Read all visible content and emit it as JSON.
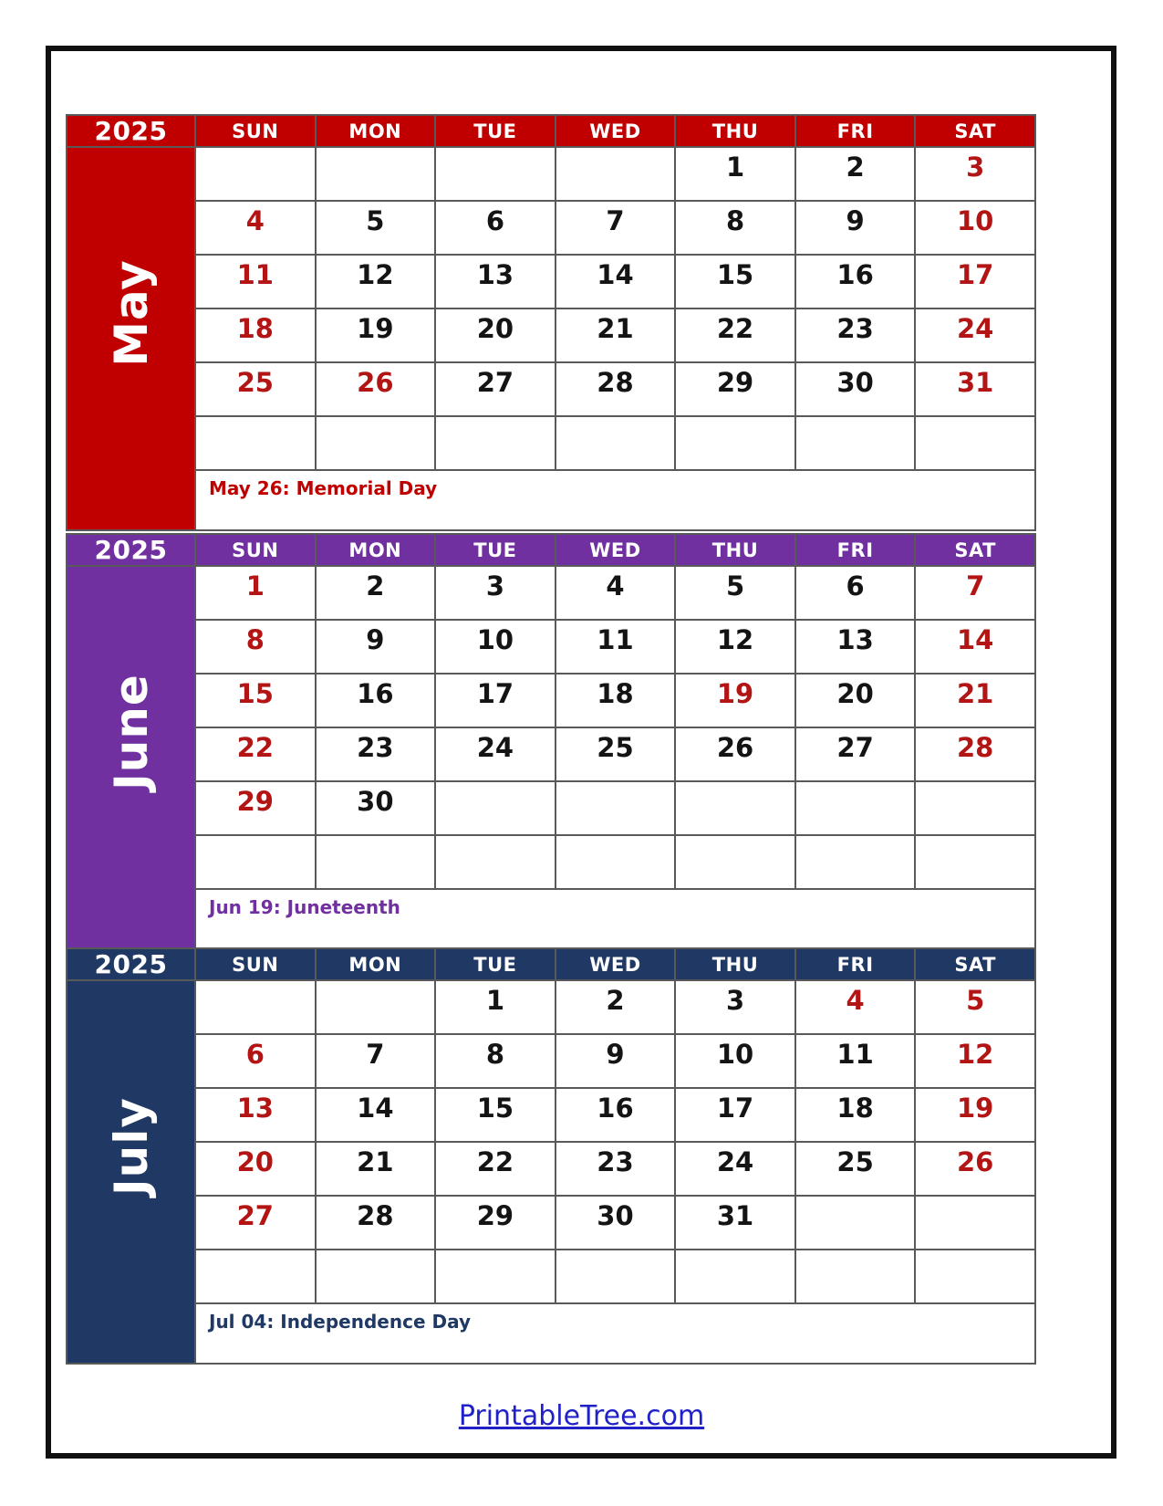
{
  "page": {
    "footer": {
      "link_text": "PrintableTree.com"
    }
  },
  "colors": {
    "date_red": "#B31414",
    "footer_link_blue": "#2121C8"
  },
  "day_headers": [
    "SUN",
    "MON",
    "TUE",
    "WED",
    "THU",
    "FRI",
    "SAT"
  ],
  "months": [
    {
      "name": "May",
      "year": "2025",
      "theme_color": "#C00000",
      "holiday_note": "May 26: Memorial Day",
      "weeks": [
        [
          {
            "d": ""
          },
          {
            "d": ""
          },
          {
            "d": ""
          },
          {
            "d": ""
          },
          {
            "d": "1"
          },
          {
            "d": "2"
          },
          {
            "d": "3",
            "red": true
          }
        ],
        [
          {
            "d": "4",
            "red": true
          },
          {
            "d": "5"
          },
          {
            "d": "6"
          },
          {
            "d": "7"
          },
          {
            "d": "8"
          },
          {
            "d": "9"
          },
          {
            "d": "10",
            "red": true
          }
        ],
        [
          {
            "d": "11",
            "red": true
          },
          {
            "d": "12"
          },
          {
            "d": "13"
          },
          {
            "d": "14"
          },
          {
            "d": "15"
          },
          {
            "d": "16"
          },
          {
            "d": "17",
            "red": true
          }
        ],
        [
          {
            "d": "18",
            "red": true
          },
          {
            "d": "19"
          },
          {
            "d": "20"
          },
          {
            "d": "21"
          },
          {
            "d": "22"
          },
          {
            "d": "23"
          },
          {
            "d": "24",
            "red": true
          }
        ],
        [
          {
            "d": "25",
            "red": true
          },
          {
            "d": "26",
            "red": true
          },
          {
            "d": "27"
          },
          {
            "d": "28"
          },
          {
            "d": "29"
          },
          {
            "d": "30"
          },
          {
            "d": "31",
            "red": true
          }
        ],
        [
          {
            "d": ""
          },
          {
            "d": ""
          },
          {
            "d": ""
          },
          {
            "d": ""
          },
          {
            "d": ""
          },
          {
            "d": ""
          },
          {
            "d": ""
          }
        ]
      ]
    },
    {
      "name": "June",
      "year": "2025",
      "theme_color": "#7030A0",
      "holiday_note": "Jun 19: Juneteenth",
      "weeks": [
        [
          {
            "d": "1",
            "red": true
          },
          {
            "d": "2"
          },
          {
            "d": "3"
          },
          {
            "d": "4"
          },
          {
            "d": "5"
          },
          {
            "d": "6"
          },
          {
            "d": "7",
            "red": true
          }
        ],
        [
          {
            "d": "8",
            "red": true
          },
          {
            "d": "9"
          },
          {
            "d": "10"
          },
          {
            "d": "11"
          },
          {
            "d": "12"
          },
          {
            "d": "13"
          },
          {
            "d": "14",
            "red": true
          }
        ],
        [
          {
            "d": "15",
            "red": true
          },
          {
            "d": "16"
          },
          {
            "d": "17"
          },
          {
            "d": "18"
          },
          {
            "d": "19",
            "red": true
          },
          {
            "d": "20"
          },
          {
            "d": "21",
            "red": true
          }
        ],
        [
          {
            "d": "22",
            "red": true
          },
          {
            "d": "23"
          },
          {
            "d": "24"
          },
          {
            "d": "25"
          },
          {
            "d": "26"
          },
          {
            "d": "27"
          },
          {
            "d": "28",
            "red": true
          }
        ],
        [
          {
            "d": "29",
            "red": true
          },
          {
            "d": "30"
          },
          {
            "d": ""
          },
          {
            "d": ""
          },
          {
            "d": ""
          },
          {
            "d": ""
          },
          {
            "d": ""
          }
        ],
        [
          {
            "d": ""
          },
          {
            "d": ""
          },
          {
            "d": ""
          },
          {
            "d": ""
          },
          {
            "d": ""
          },
          {
            "d": ""
          },
          {
            "d": ""
          }
        ]
      ]
    },
    {
      "name": "July",
      "year": "2025",
      "theme_color": "#1F3864",
      "holiday_note": "Jul 04: Independence Day",
      "weeks": [
        [
          {
            "d": ""
          },
          {
            "d": ""
          },
          {
            "d": "1"
          },
          {
            "d": "2"
          },
          {
            "d": "3"
          },
          {
            "d": "4",
            "red": true
          },
          {
            "d": "5",
            "red": true
          }
        ],
        [
          {
            "d": "6",
            "red": true
          },
          {
            "d": "7"
          },
          {
            "d": "8"
          },
          {
            "d": "9"
          },
          {
            "d": "10"
          },
          {
            "d": "11"
          },
          {
            "d": "12",
            "red": true
          }
        ],
        [
          {
            "d": "13",
            "red": true
          },
          {
            "d": "14"
          },
          {
            "d": "15"
          },
          {
            "d": "16"
          },
          {
            "d": "17"
          },
          {
            "d": "18"
          },
          {
            "d": "19",
            "red": true
          }
        ],
        [
          {
            "d": "20",
            "red": true
          },
          {
            "d": "21"
          },
          {
            "d": "22"
          },
          {
            "d": "23"
          },
          {
            "d": "24"
          },
          {
            "d": "25"
          },
          {
            "d": "26",
            "red": true
          }
        ],
        [
          {
            "d": "27",
            "red": true
          },
          {
            "d": "28"
          },
          {
            "d": "29"
          },
          {
            "d": "30"
          },
          {
            "d": "31"
          },
          {
            "d": ""
          },
          {
            "d": ""
          }
        ],
        [
          {
            "d": ""
          },
          {
            "d": ""
          },
          {
            "d": ""
          },
          {
            "d": ""
          },
          {
            "d": ""
          },
          {
            "d": ""
          },
          {
            "d": ""
          }
        ]
      ]
    }
  ]
}
